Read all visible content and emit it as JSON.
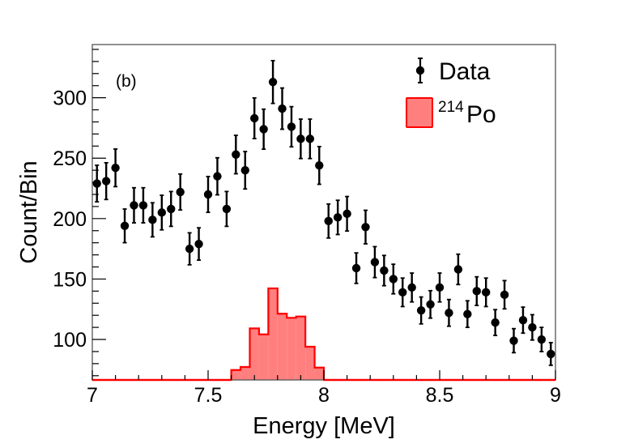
{
  "chart_data": {
    "type": "histogram-with-points",
    "title": "",
    "panel_label": "(b)",
    "xlabel": "Energy [MeV]",
    "ylabel": "Count/Bin",
    "xlim": [
      7.0,
      9.0
    ],
    "ylim": [
      66.5,
      344
    ],
    "x_ticks": [
      7,
      7.5,
      8,
      8.5,
      9
    ],
    "x_tick_labels": [
      "7",
      "7.5",
      "8",
      "8.5",
      "9"
    ],
    "y_ticks": [
      100,
      150,
      200,
      250,
      300
    ],
    "y_tick_labels": [
      "100",
      "150",
      "200",
      "250",
      "300"
    ],
    "grid": false,
    "legend": {
      "position": "top-right",
      "entries": [
        {
          "label": "Data",
          "marker": "point-with-errorbar"
        },
        {
          "label_sup": "214",
          "label": "Po",
          "marker": "filled-box"
        }
      ]
    },
    "colors": {
      "data": "#000000",
      "hist_fill": "#ff7f7f",
      "hist_line": "#ff0000",
      "frame": "#555555"
    },
    "series": [
      {
        "name": "Data",
        "kind": "points-with-sqrt-errors",
        "bin_width": 0.04,
        "x": [
          7.02,
          7.06,
          7.1,
          7.14,
          7.18,
          7.22,
          7.26,
          7.3,
          7.34,
          7.38,
          7.42,
          7.46,
          7.5,
          7.54,
          7.58,
          7.62,
          7.66,
          7.7,
          7.74,
          7.78,
          7.82,
          7.86,
          7.9,
          7.94,
          7.98,
          8.02,
          8.06,
          8.1,
          8.14,
          8.18,
          8.22,
          8.26,
          8.3,
          8.34,
          8.38,
          8.42,
          8.46,
          8.5,
          8.54,
          8.58,
          8.62,
          8.66,
          8.7,
          8.74,
          8.78,
          8.82,
          8.86,
          8.9,
          8.94,
          8.98
        ],
        "values": [
          229,
          231,
          242,
          194,
          211,
          211,
          199,
          205,
          208,
          222,
          175,
          179,
          220,
          235,
          208,
          253,
          240,
          283,
          274,
          313,
          291,
          276,
          266,
          266,
          244,
          198,
          201,
          204,
          159,
          193,
          164,
          157,
          150,
          139,
          143,
          124,
          129,
          143,
          122,
          158,
          121,
          140,
          139,
          114,
          137,
          99,
          116,
          110,
          100,
          88
        ]
      },
      {
        "name": "214Po",
        "kind": "step-histogram",
        "bin_edges": [
          7.6,
          7.64,
          7.68,
          7.72,
          7.76,
          7.8,
          7.84,
          7.88,
          7.92,
          7.96,
          8.0
        ],
        "values": [
          74.7,
          77.2,
          109.2,
          104.2,
          142.3,
          121.3,
          117.9,
          119.0,
          94.0,
          76.7
        ]
      }
    ]
  }
}
